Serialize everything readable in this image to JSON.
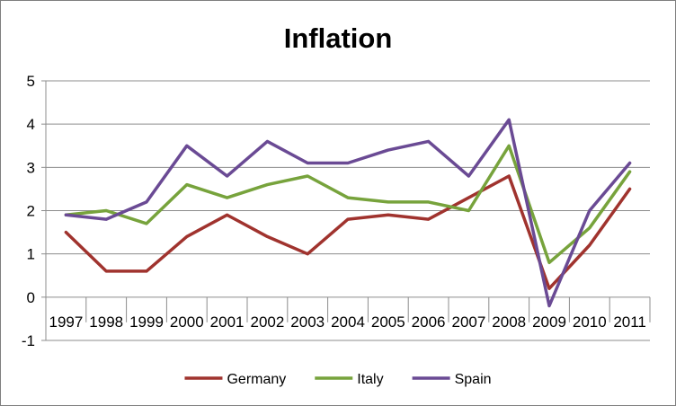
{
  "chart_data": {
    "type": "line",
    "title": "Inflation",
    "xlabel": "",
    "ylabel": "",
    "categories": [
      "1997",
      "1998",
      "1999",
      "2000",
      "2001",
      "2002",
      "2003",
      "2004",
      "2005",
      "2006",
      "2007",
      "2008",
      "2009",
      "2010",
      "2011"
    ],
    "ylim": [
      -1,
      5
    ],
    "yticks": [
      -1,
      0,
      1,
      2,
      3,
      4,
      5
    ],
    "grid": true,
    "legend_position": "bottom",
    "series": [
      {
        "name": "Germany",
        "color": "#a0332e",
        "values": [
          1.5,
          0.6,
          0.6,
          1.4,
          1.9,
          1.4,
          1.0,
          1.8,
          1.9,
          1.8,
          2.3,
          2.8,
          0.2,
          1.2,
          2.5
        ]
      },
      {
        "name": "Italy",
        "color": "#77a33c",
        "values": [
          1.9,
          2.0,
          1.7,
          2.6,
          2.3,
          2.6,
          2.8,
          2.3,
          2.2,
          2.2,
          2.0,
          3.5,
          0.8,
          1.6,
          2.9
        ]
      },
      {
        "name": "Spain",
        "color": "#6a4a94",
        "values": [
          1.9,
          1.8,
          2.2,
          3.5,
          2.8,
          3.6,
          3.1,
          3.1,
          3.4,
          3.6,
          2.8,
          4.1,
          -0.2,
          2.0,
          3.1
        ]
      }
    ]
  }
}
